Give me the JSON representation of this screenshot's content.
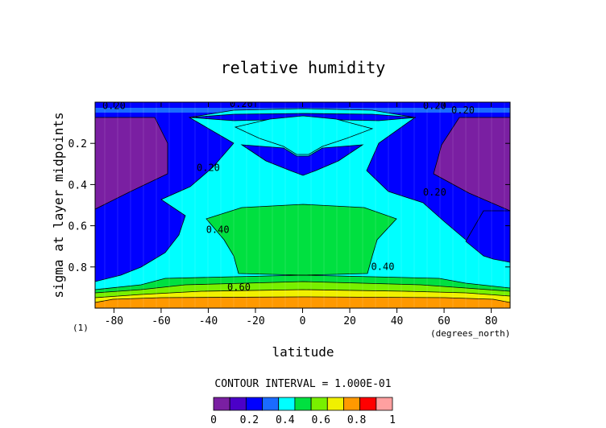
{
  "chart_data": {
    "type": "heatmap",
    "subtype": "filled-contour",
    "title": "relative humidity",
    "xlabel": "latitude",
    "ylabel": "sigma at layer midpoints",
    "x_unit_label": "(degrees_north)",
    "panel_label": "(1)",
    "xlim": [
      -88,
      88
    ],
    "ylim": [
      1.0,
      0.0
    ],
    "x_ticks": [
      -80,
      -60,
      -40,
      -20,
      0,
      20,
      40,
      60,
      80
    ],
    "y_ticks": [
      0.2,
      0.4,
      0.6,
      0.8
    ],
    "contour_interval_text": "CONTOUR INTERVAL = 1.000E-01",
    "color_levels": [
      "#7a1fa2",
      "#4b00c8",
      "#0000ff",
      "#1a6bff",
      "#00ffff",
      "#00e040",
      "#78f000",
      "#f0f000",
      "#ff9900",
      "#ff0000",
      "#ffa0a0"
    ],
    "colorbar_ticks": [
      "0",
      "0.2",
      "0.4",
      "0.6",
      "0.8",
      "1"
    ],
    "contour_labels": [
      {
        "text": "0.20",
        "lat": -80,
        "sigma": 0.03
      },
      {
        "text": "0.20",
        "lat": -26,
        "sigma": 0.02
      },
      {
        "text": "0.20",
        "lat": 56,
        "sigma": 0.03
      },
      {
        "text": "0.20",
        "lat": 68,
        "sigma": 0.05
      },
      {
        "text": "0.20",
        "lat": -40,
        "sigma": 0.33
      },
      {
        "text": "0.20",
        "lat": 56,
        "sigma": 0.45
      },
      {
        "text": "0.40",
        "lat": -36,
        "sigma": 0.63
      },
      {
        "text": "0.40",
        "lat": 34,
        "sigma": 0.81
      },
      {
        "text": "0.60",
        "lat": -27,
        "sigma": 0.91
      }
    ],
    "grid": false,
    "legend": "colorbar-bottom"
  }
}
